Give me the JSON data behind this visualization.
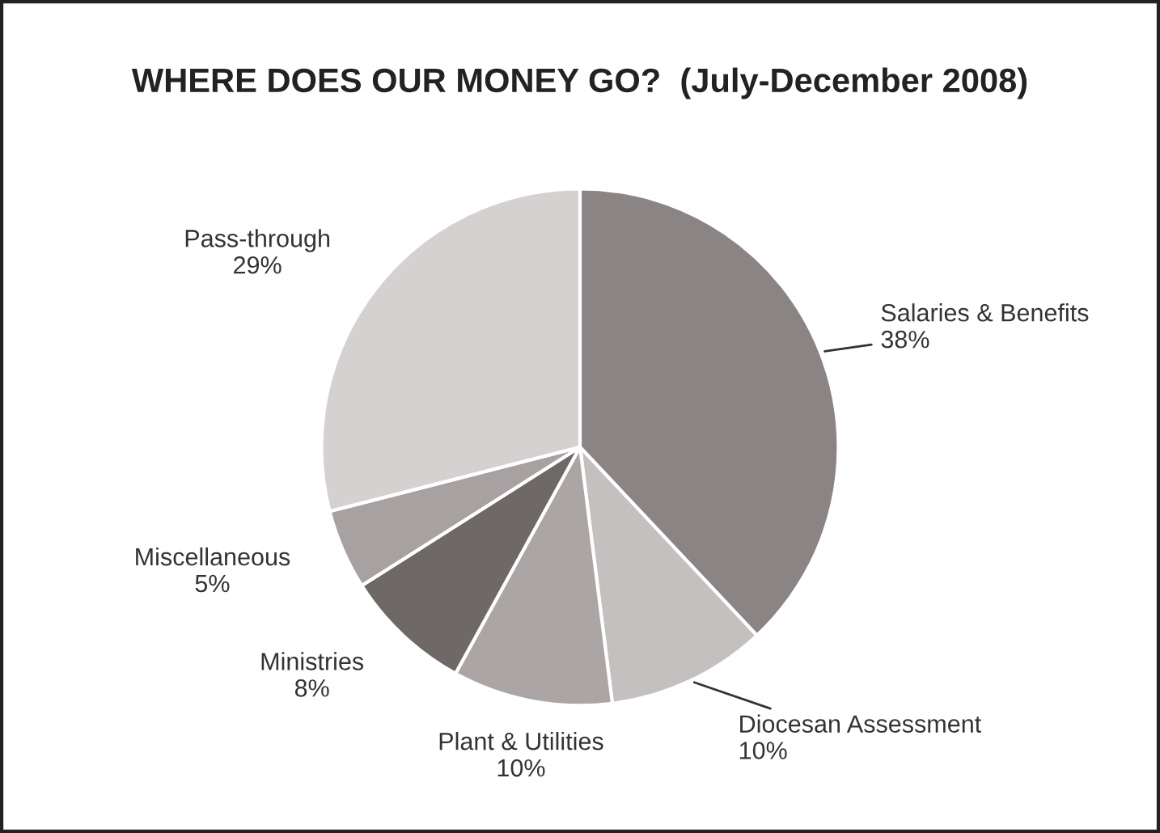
{
  "chart_data": {
    "type": "pie",
    "title": "WHERE DOES OUR MONEY GO?  (July-December 2008)",
    "categories": [
      "Salaries & Benefits",
      "Diocesan Assessment",
      "Plant & Utilities",
      "Ministries",
      "Miscellaneous",
      "Pass-through"
    ],
    "values": [
      38,
      10,
      10,
      8,
      5,
      29
    ],
    "value_labels": [
      "38%",
      "10%",
      "10%",
      "8%",
      "5%",
      "29%"
    ],
    "colors": [
      "#8a8584",
      "#c4c0bf",
      "#aba6a5",
      "#6e6867",
      "#a7a2a1",
      "#d5d1d0"
    ],
    "legend": false
  }
}
